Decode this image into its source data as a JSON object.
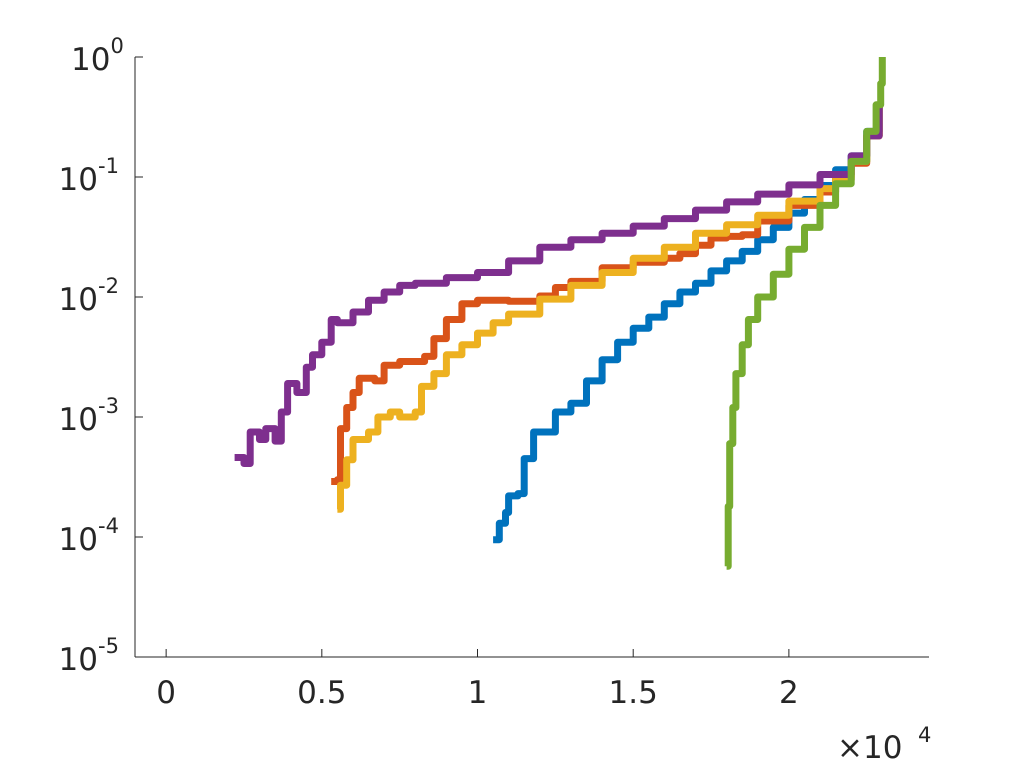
{
  "chart_data": {
    "type": "line",
    "title": "",
    "xlabel": "",
    "ylabel": "",
    "xscale": "linear",
    "yscale": "log",
    "xlim": [
      -1000,
      24500
    ],
    "ylim": [
      1e-05,
      1
    ],
    "x_exponent_label": {
      "base": "×10",
      "exp": "4"
    },
    "xticks": [
      {
        "value": 0,
        "label": "0"
      },
      {
        "value": 5000,
        "label": "0.5"
      },
      {
        "value": 10000,
        "label": "1"
      },
      {
        "value": 15000,
        "label": "1.5"
      },
      {
        "value": 20000,
        "label": "2"
      }
    ],
    "yticks": [
      {
        "value": 1e-05,
        "base": "10",
        "exp": "-5"
      },
      {
        "value": 0.0001,
        "base": "10",
        "exp": "-4"
      },
      {
        "value": 0.001,
        "base": "10",
        "exp": "-3"
      },
      {
        "value": 0.01,
        "base": "10",
        "exp": "-2"
      },
      {
        "value": 0.1,
        "base": "10",
        "exp": "-1"
      },
      {
        "value": 1,
        "base": "10",
        "exp": "0"
      }
    ],
    "grid": false,
    "legend": "none",
    "series": [
      {
        "color": "#0072BD",
        "points": [
          [
            10500,
            9.5e-05
          ],
          [
            10700,
            0.00013
          ],
          [
            10900,
            0.00016
          ],
          [
            11000,
            0.00022
          ],
          [
            11300,
            0.00023
          ],
          [
            11500,
            0.00045
          ],
          [
            11800,
            0.00075
          ],
          [
            12500,
            0.0011
          ],
          [
            13000,
            0.0013
          ],
          [
            13500,
            0.002
          ],
          [
            14000,
            0.003
          ],
          [
            14500,
            0.0042
          ],
          [
            15000,
            0.0055
          ],
          [
            15500,
            0.0068
          ],
          [
            16000,
            0.0088
          ],
          [
            16500,
            0.011
          ],
          [
            17000,
            0.013
          ],
          [
            17500,
            0.0165
          ],
          [
            18000,
            0.02
          ],
          [
            18500,
            0.024
          ],
          [
            19000,
            0.03
          ],
          [
            19500,
            0.038
          ],
          [
            20000,
            0.05
          ],
          [
            20500,
            0.065
          ],
          [
            21000,
            0.085
          ],
          [
            21500,
            0.115
          ],
          [
            22000,
            0.15
          ],
          [
            22500,
            0.24
          ],
          [
            22900,
            0.4
          ]
        ]
      },
      {
        "color": "#D95319",
        "points": [
          [
            5300,
            0.00029
          ],
          [
            5500,
            0.0003
          ],
          [
            5600,
            0.0008
          ],
          [
            5800,
            0.0012
          ],
          [
            6000,
            0.0016
          ],
          [
            6200,
            0.0021
          ],
          [
            6700,
            0.002
          ],
          [
            7000,
            0.0027
          ],
          [
            7500,
            0.0029
          ],
          [
            8000,
            0.0029
          ],
          [
            8300,
            0.0032
          ],
          [
            8600,
            0.0045
          ],
          [
            9000,
            0.0065
          ],
          [
            9500,
            0.0088
          ],
          [
            10000,
            0.0094
          ],
          [
            11000,
            0.0092
          ],
          [
            12000,
            0.0102
          ],
          [
            12500,
            0.012
          ],
          [
            13000,
            0.0135
          ],
          [
            14000,
            0.0175
          ],
          [
            15000,
            0.0195
          ],
          [
            16000,
            0.021
          ],
          [
            16500,
            0.023
          ],
          [
            17000,
            0.027
          ],
          [
            17500,
            0.031
          ],
          [
            18000,
            0.032
          ],
          [
            18500,
            0.033
          ],
          [
            19000,
            0.043
          ],
          [
            20000,
            0.058
          ],
          [
            21000,
            0.075
          ],
          [
            21500,
            0.095
          ],
          [
            22000,
            0.13
          ],
          [
            22500,
            0.22
          ],
          [
            22900,
            0.4
          ]
        ]
      },
      {
        "color": "#EDB120",
        "points": [
          [
            5500,
            0.00017
          ],
          [
            5600,
            0.00027
          ],
          [
            5800,
            0.00044
          ],
          [
            6000,
            0.00065
          ],
          [
            6500,
            0.00075
          ],
          [
            6800,
            0.001
          ],
          [
            7200,
            0.0011
          ],
          [
            7500,
            0.001
          ],
          [
            8000,
            0.0011
          ],
          [
            8200,
            0.0018
          ],
          [
            8600,
            0.0023
          ],
          [
            9000,
            0.0033
          ],
          [
            9500,
            0.004
          ],
          [
            10000,
            0.005
          ],
          [
            10500,
            0.0061
          ],
          [
            11000,
            0.0072
          ],
          [
            12000,
            0.0096
          ],
          [
            13000,
            0.0125
          ],
          [
            14000,
            0.016
          ],
          [
            15000,
            0.021
          ],
          [
            16000,
            0.026
          ],
          [
            17000,
            0.034
          ],
          [
            18000,
            0.04
          ],
          [
            19000,
            0.048
          ],
          [
            20000,
            0.063
          ],
          [
            21000,
            0.08
          ],
          [
            21500,
            0.1
          ],
          [
            22000,
            0.135
          ],
          [
            22500,
            0.22
          ],
          [
            22900,
            0.4
          ]
        ]
      },
      {
        "color": "#7E2F8E",
        "points": [
          [
            2200,
            0.00046
          ],
          [
            2500,
            0.00041
          ],
          [
            2700,
            0.00075
          ],
          [
            3000,
            0.00065
          ],
          [
            3200,
            0.0008
          ],
          [
            3500,
            0.00063
          ],
          [
            3700,
            0.0011
          ],
          [
            3900,
            0.0019
          ],
          [
            4200,
            0.0016
          ],
          [
            4500,
            0.0026
          ],
          [
            4700,
            0.0033
          ],
          [
            5000,
            0.0042
          ],
          [
            5300,
            0.0065
          ],
          [
            5500,
            0.0061
          ],
          [
            6000,
            0.0075
          ],
          [
            6500,
            0.0094
          ],
          [
            7000,
            0.011
          ],
          [
            7500,
            0.0125
          ],
          [
            8000,
            0.013
          ],
          [
            9000,
            0.0145
          ],
          [
            10000,
            0.016
          ],
          [
            11000,
            0.02
          ],
          [
            12000,
            0.026
          ],
          [
            13000,
            0.03
          ],
          [
            14000,
            0.034
          ],
          [
            15000,
            0.039
          ],
          [
            16000,
            0.045
          ],
          [
            17000,
            0.053
          ],
          [
            18000,
            0.062
          ],
          [
            19000,
            0.072
          ],
          [
            20000,
            0.086
          ],
          [
            21000,
            0.105
          ],
          [
            22000,
            0.15
          ],
          [
            22500,
            0.22
          ],
          [
            22900,
            0.4
          ]
        ]
      },
      {
        "color": "#77AC30",
        "points": [
          [
            18000,
            5.7e-05
          ],
          [
            18050,
            0.00018
          ],
          [
            18100,
            0.0006
          ],
          [
            18200,
            0.0012
          ],
          [
            18300,
            0.0023
          ],
          [
            18500,
            0.004
          ],
          [
            18700,
            0.0065
          ],
          [
            19000,
            0.01
          ],
          [
            19500,
            0.0155
          ],
          [
            20000,
            0.025
          ],
          [
            20500,
            0.038
          ],
          [
            21000,
            0.058
          ],
          [
            21500,
            0.088
          ],
          [
            22000,
            0.135
          ],
          [
            22500,
            0.24
          ],
          [
            22800,
            0.4
          ],
          [
            22950,
            0.6
          ],
          [
            23000,
            1.0
          ]
        ]
      }
    ]
  }
}
